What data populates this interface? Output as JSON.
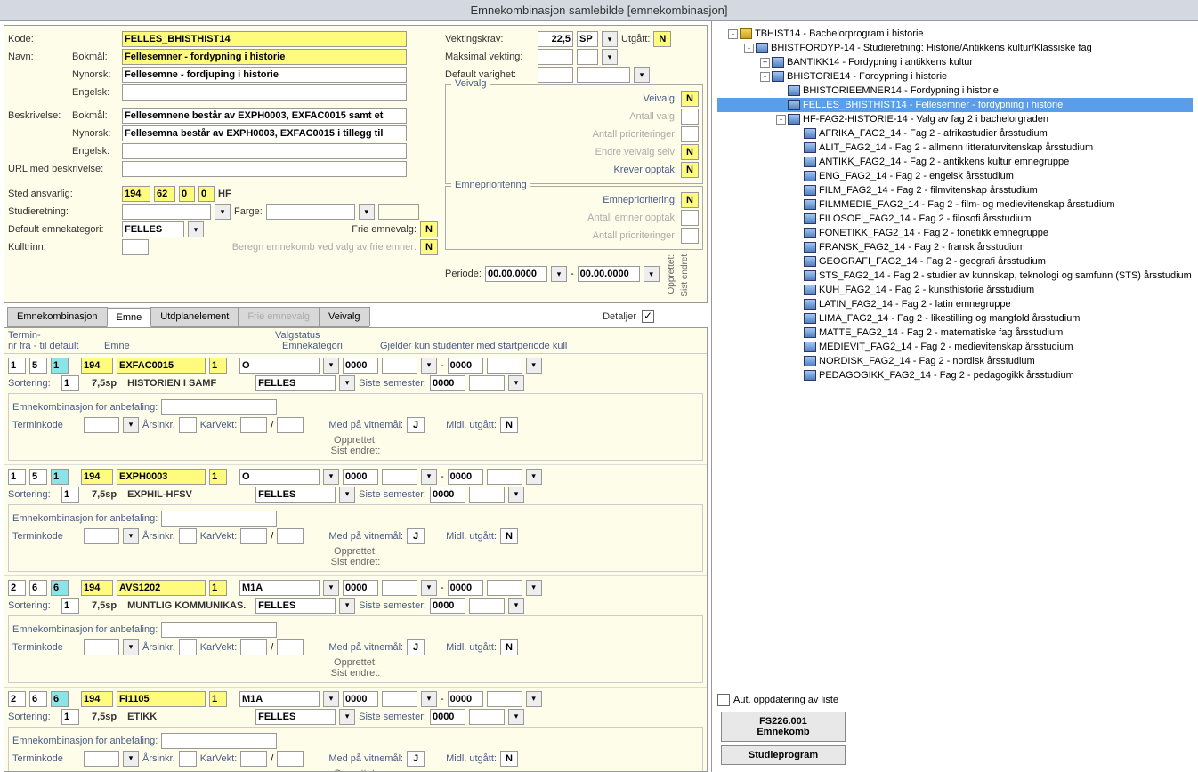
{
  "window": {
    "title": "Emnekombinasjon samlebilde  [emnekombinasjon]"
  },
  "form": {
    "labels": {
      "kode": "Kode:",
      "navn": "Navn:",
      "bokmal": "Bokmål:",
      "nynorsk": "Nynorsk:",
      "engelsk": "Engelsk:",
      "beskrivelse": "Beskrivelse:",
      "url": "URL med beskrivelse:",
      "sted": "Sted ansvarlig:",
      "studieretning": "Studieretning:",
      "farge": "Farge:",
      "default_kat": "Default emnekategori:",
      "frie": "Frie emnevalg:",
      "kulltrinn": "Kulltrinn:",
      "beregn": "Beregn emnekomb ved valg av frie emner:",
      "vektingskrav": "Vektingskrav:",
      "maksimal": "Maksimal vekting:",
      "default_var": "Default varighet:",
      "utgatt": "Utgått:",
      "sp": "SP",
      "veivalg": "Veivalg",
      "veivalg_f": "Veivalg:",
      "antall_valg": "Antall valg:",
      "antall_pri": "Antall prioriteringer:",
      "endre": "Endre veivalg selv:",
      "krever": "Krever opptak:",
      "emnepri": "Emneprioritering",
      "emnepri_f": "Emneprioritering:",
      "ant_emner": "Antall emner opptak:",
      "periode": "Periode:",
      "opprettet": "Opprettet:",
      "sist_endret": "Sist endret:"
    },
    "kode": "FELLES_BHISTHIST14",
    "navn_bm": "Fellesemner - fordypning i historie",
    "navn_nn": "Fellesemne - fordjuping i historie",
    "navn_en": "",
    "besk_bm": "Fellesemnene består av EXPH0003, EXFAC0015 samt et",
    "besk_nn": "Fellesemna består av EXPH0003, EXFAC0015 i tillegg til",
    "besk_en": "",
    "url_v": "",
    "sted1": "194",
    "sted2": "62",
    "sted3": "0",
    "sted4": "0",
    "sted_txt": "HF",
    "def_kat": "FELLES",
    "frie_v": "N",
    "kulltrinn_v": "",
    "beregn_v": "N",
    "vekt": "22,5",
    "utgatt_v": "N",
    "veivalg_v": "N",
    "endre_v": "N",
    "krever_v": "N",
    "emnepri_v": "N",
    "per1": "00.00.0000",
    "per2": "00.00.0000",
    "dash": "-"
  },
  "tabs": {
    "t1": "Emnekombinasjon",
    "t2": "Emne",
    "t3": "Utdplanelement",
    "t4": "Frie emnevalg",
    "t5": "Veivalg",
    "detaljer": "Detaljer"
  },
  "dheader": {
    "c1": "Termin-",
    "c2": "nr fra - til  default",
    "c3": "Emne",
    "c4": "Valgstatus",
    "c5": "Emnekategori",
    "c6": "Gjelder kun studenter med startperiode kull"
  },
  "emne_labels": {
    "sortering": "Sortering:",
    "anbef": "Emnekombinasjon for anbefaling:",
    "terminkode": "Terminkode",
    "arsinkr": "Årsinkr.",
    "karvekt": "KarVekt:",
    "slash": "/",
    "vitnemal": "Med på vitnemål:",
    "midl": "Midl. utgått:",
    "opprettet": "Opprettet:",
    "sist": "Sist endret:",
    "siste_sem": "Siste semester:",
    "sp_lbl": "7,5sp"
  },
  "emner": [
    {
      "fra": "1",
      "til": "5",
      "def": "1",
      "st": "194",
      "kode": "EXFAC0015",
      "ver": "1",
      "status": "O",
      "p1": "0000",
      "p2": "0000",
      "sort": "1",
      "navn": "HISTORIEN I SAMF",
      "kat": "FELLES",
      "siste": "0000",
      "vit": "J",
      "midl": "N"
    },
    {
      "fra": "1",
      "til": "5",
      "def": "1",
      "st": "194",
      "kode": "EXPH0003",
      "ver": "1",
      "status": "O",
      "p1": "0000",
      "p2": "0000",
      "sort": "1",
      "navn": "EXPHIL-HFSV",
      "kat": "FELLES",
      "siste": "0000",
      "vit": "J",
      "midl": "N"
    },
    {
      "fra": "2",
      "til": "6",
      "def": "6",
      "st": "194",
      "kode": "AVS1202",
      "ver": "1",
      "status": "M1A",
      "p1": "0000",
      "p2": "0000",
      "sort": "1",
      "navn": "MUNTLIG KOMMUNIKAS.",
      "kat": "FELLES",
      "siste": "0000",
      "vit": "J",
      "midl": "N"
    },
    {
      "fra": "2",
      "til": "6",
      "def": "6",
      "st": "194",
      "kode": "FI1105",
      "ver": "1",
      "status": "M1A",
      "p1": "0000",
      "p2": "0000",
      "sort": "1",
      "navn": "ETIKK",
      "kat": "FELLES",
      "siste": "0000",
      "vit": "J",
      "midl": "N"
    }
  ],
  "tree": [
    {
      "d": 0,
      "t": "-",
      "i": "pkg",
      "txt": "TBHIST14 - Bachelorprogram i historie"
    },
    {
      "d": 1,
      "t": "-",
      "i": "node",
      "txt": "BHISTFORDYP-14 - Studieretning: Historie/Antikkens kultur/Klassiske fag"
    },
    {
      "d": 2,
      "t": "+",
      "i": "node",
      "txt": "BANTIKK14 - Fordypning i antikkens kultur"
    },
    {
      "d": 2,
      "t": "-",
      "i": "node",
      "txt": "BHISTORIE14 - Fordypning i historie"
    },
    {
      "d": 3,
      "t": " ",
      "i": "node",
      "txt": "BHISTORIEEMNER14 - Fordypning i historie"
    },
    {
      "d": 3,
      "t": " ",
      "i": "node",
      "txt": "FELLES_BHISTHIST14 - Fellesemner - fordypning i historie",
      "sel": true
    },
    {
      "d": 3,
      "t": "-",
      "i": "node",
      "txt": "HF-FAG2-HISTORIE-14 - Valg av fag 2 i bachelorgraden"
    },
    {
      "d": 4,
      "t": " ",
      "i": "node",
      "txt": "AFRIKA_FAG2_14 - Fag 2 - afrikastudier årsstudium"
    },
    {
      "d": 4,
      "t": " ",
      "i": "node",
      "txt": "ALIT_FAG2_14 - Fag 2 - allmenn litteraturvitenskap årsstudium"
    },
    {
      "d": 4,
      "t": " ",
      "i": "node",
      "txt": "ANTIKK_FAG2_14 - Fag 2 - antikkens kultur emnegruppe"
    },
    {
      "d": 4,
      "t": " ",
      "i": "node",
      "txt": "ENG_FAG2_14 - Fag 2 - engelsk årsstudium"
    },
    {
      "d": 4,
      "t": " ",
      "i": "node",
      "txt": "FILM_FAG2_14 - Fag 2 - filmvitenskap årsstudium"
    },
    {
      "d": 4,
      "t": " ",
      "i": "node",
      "txt": "FILMMEDIE_FAG2_14 - Fag 2 - film- og medievitenskap årsstudium"
    },
    {
      "d": 4,
      "t": " ",
      "i": "node",
      "txt": "FILOSOFI_FAG2_14 - Fag 2 - filosofi årsstudium"
    },
    {
      "d": 4,
      "t": " ",
      "i": "node",
      "txt": "FONETIKK_FAG2_14 - Fag 2 - fonetikk emnegruppe"
    },
    {
      "d": 4,
      "t": " ",
      "i": "node",
      "txt": "FRANSK_FAG2_14 - Fag 2 - fransk årsstudium"
    },
    {
      "d": 4,
      "t": " ",
      "i": "node",
      "txt": "GEOGRAFI_FAG2_14 - Fag 2 - geografi årsstudium"
    },
    {
      "d": 4,
      "t": " ",
      "i": "node",
      "txt": "STS_FAG2_14 - Fag 2 - studier av kunnskap, teknologi og samfunn (STS) årsstudium"
    },
    {
      "d": 4,
      "t": " ",
      "i": "node",
      "txt": "KUH_FAG2_14 - Fag 2 - kunsthistorie årsstudium"
    },
    {
      "d": 4,
      "t": " ",
      "i": "node",
      "txt": "LATIN_FAG2_14 - Fag 2 - latin emnegruppe"
    },
    {
      "d": 4,
      "t": " ",
      "i": "node",
      "txt": "LIMA_FAG2_14 - Fag 2 - likestilling og mangfold årsstudium"
    },
    {
      "d": 4,
      "t": " ",
      "i": "node",
      "txt": "MATTE_FAG2_14 - Fag 2 - matematiske fag årsstudium"
    },
    {
      "d": 4,
      "t": " ",
      "i": "node",
      "txt": "MEDIEVIT_FAG2_14 - Fag 2 - medievitenskap årsstudium"
    },
    {
      "d": 4,
      "t": " ",
      "i": "node",
      "txt": "NORDISK_FAG2_14 - Fag 2 - nordisk årsstudium"
    },
    {
      "d": 4,
      "t": " ",
      "i": "node",
      "txt": "PEDAGOGIKK_FAG2_14 - Fag 2 - pedagogikk årsstudium"
    }
  ],
  "rightbtns": {
    "auto": "Aut. oppdatering av liste",
    "b1": "FS226.001 Emnekomb",
    "b2": "Studieprogram"
  }
}
